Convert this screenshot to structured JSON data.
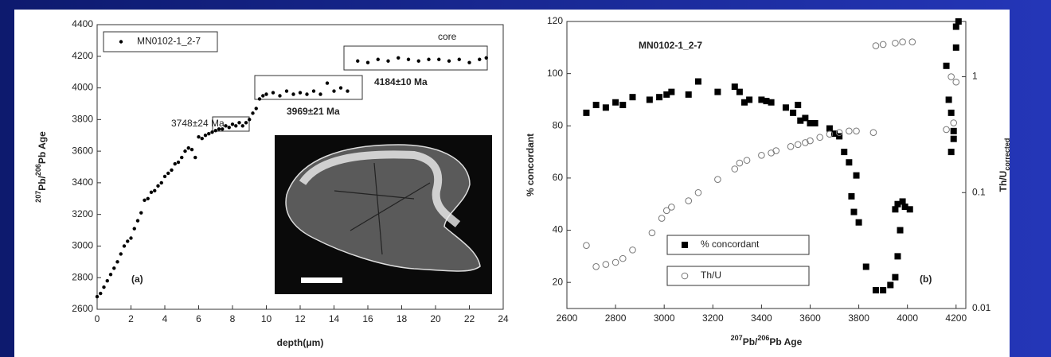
{
  "chart_data": [
    {
      "type": "scatter",
      "xlabel": "depth(μm)",
      "ylabel": [
        "207",
        "Pb/",
        "206",
        "Pb Age"
      ],
      "annotations": [
        "core",
        "4184±10 Ma",
        "3969±21 Ma",
        "3748±24 Ma",
        "(a)"
      ],
      "xlim": [
        0,
        24
      ],
      "xticks": [
        0,
        2,
        4,
        6,
        8,
        10,
        12,
        14,
        16,
        18,
        20,
        22,
        24
      ],
      "ylim": [
        2600,
        4400
      ],
      "yticks": [
        2600,
        2800,
        3000,
        3200,
        3400,
        3600,
        3800,
        4000,
        4200,
        4400
      ],
      "series": [
        {
          "name": "MN0102-1_2-7",
          "color": "#000000",
          "marker": "dot",
          "x": [
            0,
            0.2,
            0.4,
            0.6,
            0.8,
            1.0,
            1.2,
            1.4,
            1.6,
            1.8,
            2.0,
            2.2,
            2.4,
            2.6,
            2.8,
            3.0,
            3.2,
            3.4,
            3.6,
            3.8,
            4.0,
            4.2,
            4.4,
            4.6,
            4.8,
            5.0,
            5.2,
            5.4,
            5.6,
            5.8,
            6.0,
            6.2,
            6.4,
            6.6,
            6.8,
            7.0,
            7.2,
            7.4,
            7.6,
            7.8,
            8.0,
            8.2,
            8.4,
            8.6,
            8.8,
            9.0,
            9.2,
            9.4,
            9.6,
            9.8,
            10.0,
            10.4,
            10.8,
            11.2,
            11.6,
            12.0,
            12.4,
            12.8,
            13.2,
            13.6,
            14.0,
            14.4,
            14.8,
            15.4,
            16.0,
            16.6,
            17.2,
            17.8,
            18.4,
            19.0,
            19.6,
            20.2,
            20.8,
            21.4,
            22.0,
            22.6,
            23.0
          ],
          "values": [
            2680,
            2700,
            2740,
            2780,
            2820,
            2860,
            2900,
            2950,
            3000,
            3030,
            3050,
            3110,
            3160,
            3210,
            3290,
            3300,
            3340,
            3350,
            3380,
            3400,
            3440,
            3460,
            3480,
            3520,
            3530,
            3560,
            3600,
            3620,
            3610,
            3560,
            3690,
            3680,
            3700,
            3710,
            3720,
            3730,
            3740,
            3740,
            3760,
            3750,
            3770,
            3760,
            3780,
            3760,
            3780,
            3800,
            3840,
            3870,
            3930,
            3950,
            3960,
            3970,
            3950,
            3980,
            3960,
            3970,
            3960,
            3980,
            3960,
            4030,
            3980,
            4000,
            3980,
            4170,
            4160,
            4180,
            4170,
            4190,
            4180,
            4170,
            4180,
            4180,
            4170,
            4180,
            4160,
            4180,
            4190
          ]
        }
      ]
    },
    {
      "type": "scatter",
      "title": "MN0102-1_2-7",
      "xlabel": [
        "207",
        "Pb/",
        "206",
        "Pb Age"
      ],
      "ylabel": "% concordant",
      "y2label": [
        "Th/U",
        "corrected"
      ],
      "annotations": [
        "(b)"
      ],
      "xlim": [
        2600,
        4240
      ],
      "xticks": [
        2600,
        2800,
        3000,
        3200,
        3400,
        3600,
        3800,
        4000,
        4200
      ],
      "ylim": [
        10,
        120
      ],
      "yticks": [
        20,
        40,
        60,
        80,
        100,
        120
      ],
      "y2lim": [
        0.01,
        3
      ],
      "y2log": true,
      "y2ticks": [
        0.01,
        0.1,
        1
      ],
      "series": [
        {
          "name": "% concordant",
          "color": "#000000",
          "marker": "square",
          "x": [
            2680,
            2720,
            2760,
            2800,
            2830,
            2870,
            2940,
            2980,
            3010,
            3030,
            3100,
            3140,
            3220,
            3290,
            3310,
            3330,
            3350,
            3400,
            3420,
            3440,
            3500,
            3530,
            3550,
            3560,
            3580,
            3600,
            3620,
            3680,
            3700,
            3720,
            3740,
            3760,
            3770,
            3780,
            3790,
            3800,
            3830,
            3870,
            3900,
            3930,
            3950,
            3960,
            3970,
            3950,
            3960,
            3980,
            3990,
            4010,
            4160,
            4170,
            4180,
            4190,
            4180,
            4190,
            4200,
            4200,
            4210
          ],
          "values": [
            85,
            88,
            87,
            89,
            88,
            91,
            90,
            91,
            92,
            93,
            92,
            97,
            93,
            95,
            93,
            89,
            90,
            90,
            89.5,
            89,
            87,
            85,
            88,
            82,
            83,
            81,
            81,
            79,
            77,
            76,
            70,
            66,
            53,
            47,
            61,
            43,
            26,
            17,
            17,
            19,
            22,
            30,
            40,
            48,
            50,
            51,
            49,
            48,
            103,
            90,
            85,
            78,
            70,
            75,
            110,
            118,
            120
          ]
        },
        {
          "name": "Th/U",
          "color": "#777777",
          "marker": "circle",
          "axis": "y2",
          "x": [
            2680,
            2720,
            2760,
            2800,
            2830,
            2870,
            2950,
            2990,
            3010,
            3030,
            3100,
            3140,
            3220,
            3290,
            3310,
            3340,
            3400,
            3440,
            3460,
            3520,
            3550,
            3580,
            3600,
            3640,
            3680,
            3720,
            3760,
            3790,
            3860,
            3870,
            3900,
            3950,
            3980,
            4020,
            4160,
            4180,
            4200,
            4190
          ],
          "values": [
            0.035,
            0.023,
            0.024,
            0.025,
            0.027,
            0.032,
            0.045,
            0.06,
            0.07,
            0.075,
            0.085,
            0.1,
            0.13,
            0.16,
            0.18,
            0.19,
            0.21,
            0.22,
            0.23,
            0.25,
            0.26,
            0.27,
            0.28,
            0.3,
            0.32,
            0.33,
            0.34,
            0.34,
            0.33,
            1.85,
            1.9,
            1.95,
            2.0,
            2.0,
            0.35,
            1.0,
            0.9,
            0.4
          ]
        }
      ]
    }
  ]
}
